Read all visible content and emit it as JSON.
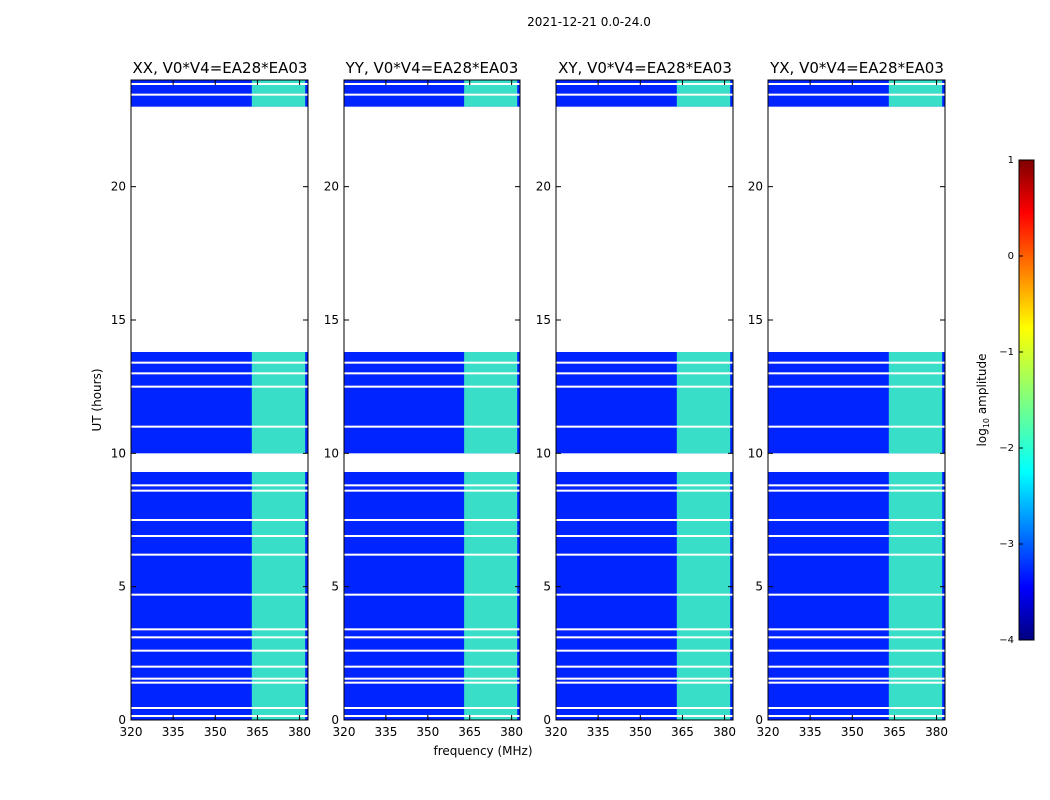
{
  "figure": {
    "suptitle": "2021-12-21 0.0-24.0",
    "xlabel": "frequency (MHz)",
    "ylabel": "UT (hours)",
    "colorbar_label": "log10 amplitude"
  },
  "chart_data": {
    "type": "heatmap",
    "colormap": "jet",
    "xlim": [
      320,
      383
    ],
    "ylim": [
      0,
      24
    ],
    "xticks": [
      320,
      335,
      350,
      365,
      380
    ],
    "yticks": [
      0,
      5,
      10,
      15,
      20
    ],
    "color_range": [
      -4,
      1
    ],
    "colorbar_ticks": [
      1,
      0,
      -1,
      -2,
      -3,
      -4
    ],
    "colorbar_tick_labels": [
      "1",
      "0",
      "−1",
      "−2",
      "−3",
      "−4"
    ],
    "panels": [
      {
        "title": "XX, V0*V4=EA28*EA03"
      },
      {
        "title": "YY, V0*V4=EA28*EA03"
      },
      {
        "title": "XY, V0*V4=EA28*EA03"
      },
      {
        "title": "YX, V0*V4=EA28*EA03"
      }
    ],
    "data_blocks_hours": [
      [
        0.0,
        9.3
      ],
      [
        10.0,
        13.8
      ],
      [
        23.0,
        24.0
      ]
    ],
    "gap_hours": [
      [
        9.3,
        10.0
      ],
      [
        13.8,
        23.0
      ]
    ],
    "background_log_amplitude": -3.2,
    "rfi_band_mhz": [
      363,
      382
    ],
    "rfi_log_amplitude": -1.8,
    "flagged_rows_hours": [
      0.15,
      0.45,
      1.4,
      1.55,
      2.0,
      2.6,
      3.1,
      3.4,
      4.7,
      6.2,
      6.9,
      7.5,
      8.6,
      8.8,
      11.0,
      12.5,
      13.0,
      13.4,
      23.45,
      23.85
    ]
  }
}
